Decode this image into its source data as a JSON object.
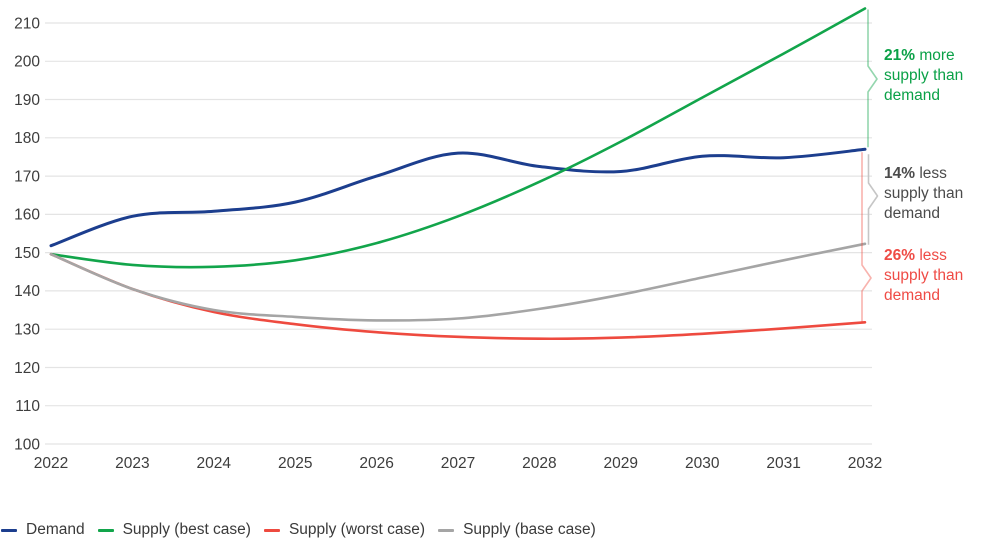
{
  "chart_data": {
    "type": "line",
    "x": [
      2022,
      2023,
      2024,
      2025,
      2026,
      2027,
      2028,
      2029,
      2030,
      2031,
      2032
    ],
    "series": [
      {
        "name": "Demand",
        "color": "#1c3e8e",
        "width": 3,
        "values": [
          151.8,
          159.5,
          160.8,
          163.2,
          170.0,
          176.0,
          172.5,
          171.2,
          175.2,
          174.8,
          177.0
        ]
      },
      {
        "name": "Supply (best case)",
        "color": "#12a54b",
        "width": 2.6,
        "values": [
          149.6,
          146.8,
          146.3,
          148.0,
          152.5,
          159.5,
          168.5,
          179.0,
          190.5,
          202.0,
          213.8
        ]
      },
      {
        "name": "Supply (worst case)",
        "color": "#ee4a3f",
        "width": 2.6,
        "values": [
          149.6,
          140.5,
          134.5,
          131.3,
          129.2,
          128.0,
          127.5,
          127.8,
          128.8,
          130.2,
          131.8
        ]
      },
      {
        "name": "Supply (base case)",
        "color": "#a5a5a5",
        "width": 2.6,
        "values": [
          149.6,
          140.5,
          135.0,
          133.2,
          132.3,
          132.8,
          135.3,
          139.0,
          143.5,
          148.0,
          152.3
        ]
      }
    ],
    "y_ticks": [
      100,
      110,
      120,
      130,
      140,
      150,
      160,
      170,
      180,
      190,
      200,
      210
    ],
    "ylim": [
      100,
      215
    ],
    "xlim": [
      2022,
      2032
    ],
    "grid": "horizontal only",
    "legend_position": "bottom-left",
    "title": "",
    "xlabel": "",
    "ylabel": ""
  },
  "annotations": [
    {
      "pct": "21%",
      "text": " more supply than demand",
      "color": "#0aa147",
      "refers_to": "Supply (best case)"
    },
    {
      "pct": "14%",
      "text": " less supply than demand",
      "color": "#4b4b4b",
      "refers_to": "Supply (base case)"
    },
    {
      "pct": "26%",
      "text": " less supply than demand",
      "color": "#ef4b45",
      "refers_to": "Supply (worst case)"
    }
  ],
  "axis_text_color": "#3d3d3d"
}
